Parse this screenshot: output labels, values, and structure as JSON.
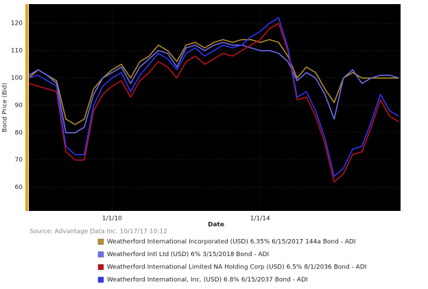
{
  "chart_data": {
    "type": "line",
    "y_label": "Bond Price (Bid)",
    "x_label": "Date",
    "source": "Source: Advantage Data Inc. 10/17/17 10:12",
    "x": [
      "10/1/07",
      "1/1/08",
      "4/1/08",
      "7/1/08",
      "10/1/08",
      "1/1/09",
      "4/1/09",
      "7/1/09",
      "10/1/09",
      "1/1/10",
      "4/1/10",
      "7/1/10",
      "10/1/10",
      "1/1/11",
      "4/1/11",
      "7/1/11",
      "10/1/11",
      "1/1/12",
      "4/1/12",
      "7/1/12",
      "10/1/12",
      "1/1/13",
      "4/1/13",
      "7/1/13",
      "10/1/13",
      "1/1/14",
      "4/1/14",
      "7/1/14",
      "10/1/14",
      "1/1/15",
      "4/1/15",
      "7/1/15",
      "10/1/15",
      "1/1/16",
      "4/1/16",
      "7/1/16",
      "10/1/16",
      "1/1/17",
      "4/1/17",
      "7/1/17",
      "10/1/17"
    ],
    "series": [
      {
        "name": "Weatherford International Incorporated (USD) 6.35% 6/15/2017 144a Bond - ADI",
        "color": "#b8902a",
        "values": [
          100,
          103,
          101,
          99,
          85,
          83,
          85,
          96,
          100,
          103,
          105,
          100,
          106,
          108,
          112,
          110,
          106,
          112,
          113,
          111,
          113,
          114,
          113,
          114,
          114,
          113,
          114,
          113,
          108,
          100,
          104,
          102,
          96,
          91,
          100,
          102,
          100,
          100,
          100,
          100,
          100
        ]
      },
      {
        "name": "Weatherford Intl Ltd (USD) 6% 3/15/2018 Bond - ADI",
        "color": "#6f6ff0",
        "values": [
          101,
          103,
          101,
          98,
          80,
          80,
          82,
          94,
          100,
          102,
          104,
          98,
          104,
          107,
          110,
          109,
          104,
          111,
          112,
          110,
          112,
          113,
          112,
          112,
          111,
          110,
          110,
          109,
          106,
          99,
          102,
          100,
          94,
          85,
          100,
          103,
          98,
          100,
          101,
          101,
          100
        ]
      },
      {
        "name": "Weatherford International Limited NA Holding Corp (USD) 6.5% 8/1/2036 Bond - ADI",
        "color": "#c0101c",
        "values": [
          98,
          97,
          96,
          95,
          73,
          70,
          70,
          88,
          94,
          97,
          99,
          93,
          99,
          102,
          106,
          104,
          100,
          106,
          108,
          105,
          107,
          109,
          108,
          110,
          112,
          114,
          118,
          120,
          110,
          92,
          93,
          86,
          76,
          62,
          65,
          72,
          73,
          82,
          92,
          86,
          84
        ]
      },
      {
        "name": "Weatherford International, Inc. (USD) 6.8% 6/15/2037 Bond - ADI",
        "color": "#3434ff",
        "values": [
          100,
          101,
          99,
          97,
          75,
          72,
          72,
          90,
          97,
          100,
          102,
          95,
          101,
          105,
          109,
          107,
          103,
          109,
          111,
          108,
          110,
          112,
          111,
          112,
          115,
          117,
          120,
          122,
          111,
          93,
          95,
          88,
          78,
          64,
          67,
          74,
          75,
          84,
          94,
          88,
          86
        ]
      }
    ],
    "xlim": [
      "10/1/07",
      "10/17/17"
    ],
    "xticks": [
      "1/1/10",
      "1/1/14"
    ],
    "ylim": [
      51.4,
      127
    ],
    "yticks": [
      60,
      70,
      80,
      90,
      100,
      110,
      120
    ],
    "grid": true
  }
}
